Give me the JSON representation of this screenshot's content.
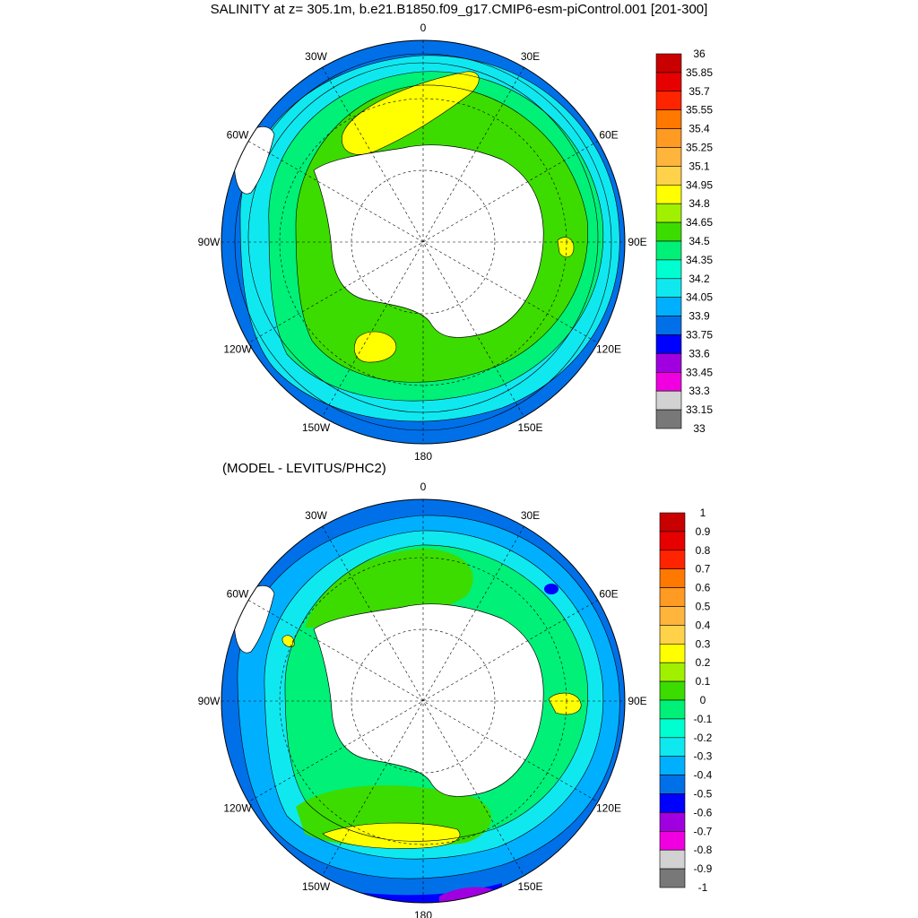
{
  "title": "SALINITY at z= 305.1m, b.e21.B1850.f09_g17.CMIP6-esm-piControl.001 [201-300]",
  "subtitle": "(MODEL - LEVITUS/PHC2)",
  "longitude_labels": [
    "0",
    "30E",
    "60E",
    "90E",
    "120E",
    "150E",
    "180",
    "150W",
    "120W",
    "90W",
    "60W",
    "30W"
  ],
  "colorbar_top": {
    "labels": [
      "36",
      "35.85",
      "35.7",
      "35.55",
      "35.4",
      "35.25",
      "35.1",
      "34.95",
      "34.8",
      "34.65",
      "34.5",
      "34.35",
      "34.2",
      "34.05",
      "33.9",
      "33.75",
      "33.6",
      "33.45",
      "33.3",
      "33.15",
      "33"
    ],
    "colors": [
      "#c80000",
      "#e60000",
      "#ff2400",
      "#ff7800",
      "#ff9a22",
      "#ffb43c",
      "#ffd24a",
      "#ffff00",
      "#a0f000",
      "#3cdc00",
      "#00f078",
      "#00ffd0",
      "#10e8f0",
      "#00b0ff",
      "#0070e8",
      "#0000ff",
      "#a000e0",
      "#f000e0",
      "#d2d2d2",
      "#787878"
    ]
  },
  "colorbar_bottom": {
    "labels": [
      "1",
      "0.9",
      "0.8",
      "0.7",
      "0.6",
      "0.5",
      "0.4",
      "0.3",
      "0.2",
      "0.1",
      "0",
      "-0.1",
      "-0.2",
      "-0.3",
      "-0.4",
      "-0.5",
      "-0.6",
      "-0.7",
      "-0.8",
      "-0.9",
      "-1"
    ],
    "colors": [
      "#c80000",
      "#e60000",
      "#ff2400",
      "#ff7800",
      "#ff9a22",
      "#ffb43c",
      "#ffd24a",
      "#ffff00",
      "#a0f000",
      "#3cdc00",
      "#00f078",
      "#00ffd0",
      "#10e8f0",
      "#00b0ff",
      "#0070e8",
      "#0000ff",
      "#a000e0",
      "#f000e0",
      "#d2d2d2",
      "#787878"
    ]
  }
}
